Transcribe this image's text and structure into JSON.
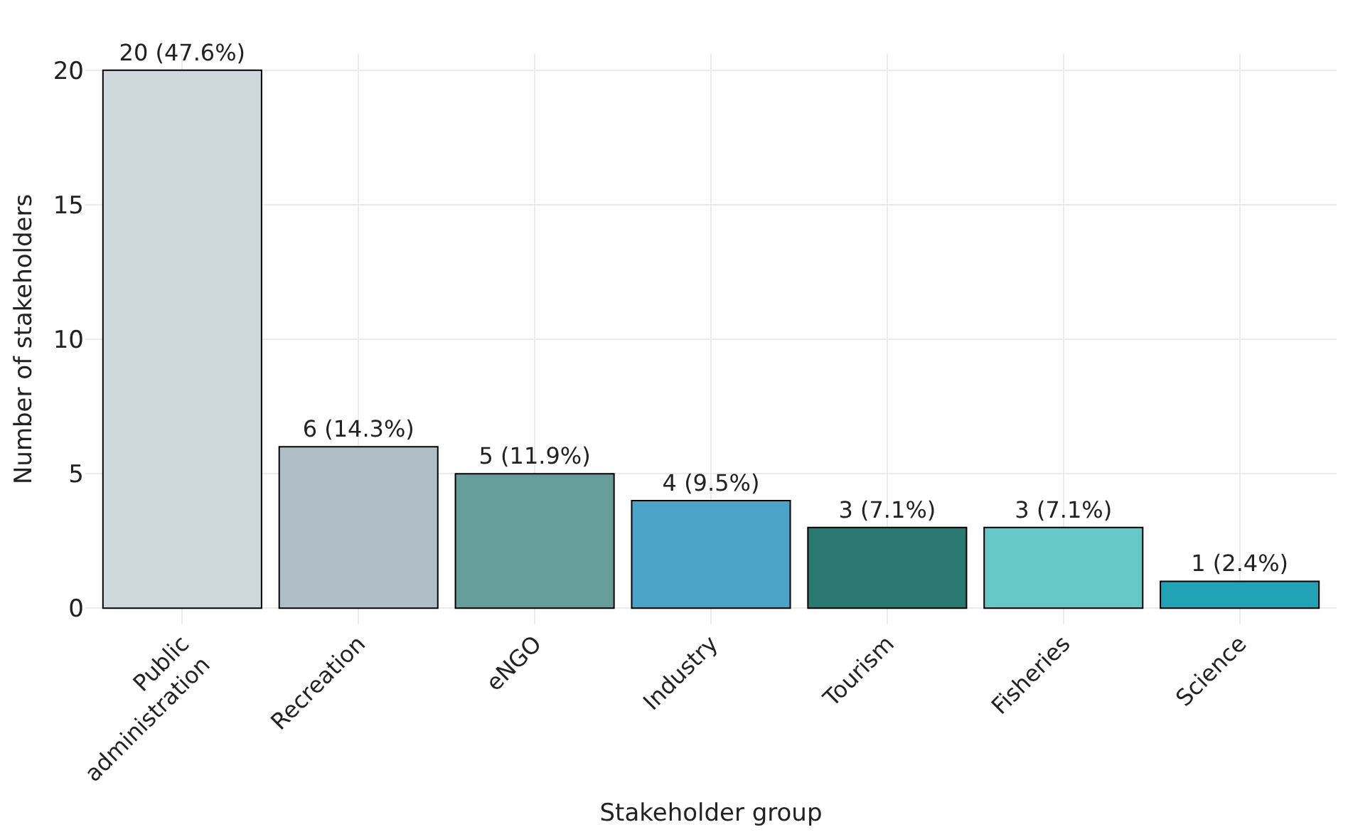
{
  "chart_data": {
    "type": "bar",
    "xlabel": "Stakeholder group",
    "ylabel": "Number of stakeholders",
    "categories": [
      "Public administration",
      "Recreation",
      "eNGO",
      "Industry",
      "Tourism",
      "Fisheries",
      "Science"
    ],
    "values": [
      20,
      6,
      5,
      4,
      3,
      3,
      1
    ],
    "colors": [
      "#cfd8dc",
      "#b0bec5",
      "#669d9b",
      "#4ba3c7",
      "#2a7a72",
      "#66c6c8",
      "#22a3b5"
    ],
    "value_labels": [
      "20 (47.6%)",
      "6 (14.3%)",
      "5 (11.9%)",
      "4 (9.5%)",
      "3 (7.1%)",
      "3 (7.1%)",
      "1 (2.4%)"
    ],
    "ylim": [
      -0.6,
      20.6
    ],
    "yticks": [
      0,
      5,
      10,
      15,
      20
    ],
    "grid": true
  }
}
